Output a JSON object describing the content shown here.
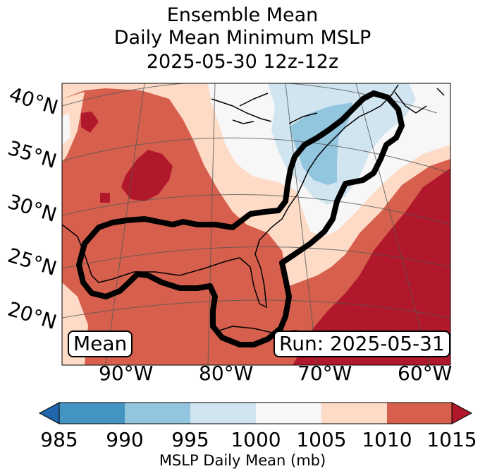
{
  "title": {
    "line1": "Ensemble Mean",
    "line2": "Daily Mean Minimum MSLP",
    "line3": "2025-05-30 12z-12z"
  },
  "lat_labels": [
    "40°N",
    "35°N",
    "30°N",
    "25°N",
    "20°N"
  ],
  "lon_labels": [
    "90°W",
    "80°W",
    "70°W",
    "60°W"
  ],
  "mean_label": "Mean",
  "run_label": "Run: 2025-05-31",
  "colorbar": {
    "ticks": [
      "985",
      "990",
      "995",
      "1000",
      "1005",
      "1010",
      "1015"
    ],
    "label": "MSLP Daily Mean (mb)",
    "colors": [
      "#2166ac",
      "#4393c3",
      "#92c5de",
      "#d1e5f0",
      "#f7f7f7",
      "#fddbc7",
      "#d6604d",
      "#b2182b"
    ]
  },
  "map_colors": {
    "c1010_1015": "#d6604d",
    "c1015": "#b2182b",
    "c1005_1010": "#fddbc7",
    "c1000_1005": "#f7f7f7",
    "c995_1000": "#d1e5f0",
    "c990_995": "#92c5de"
  }
}
